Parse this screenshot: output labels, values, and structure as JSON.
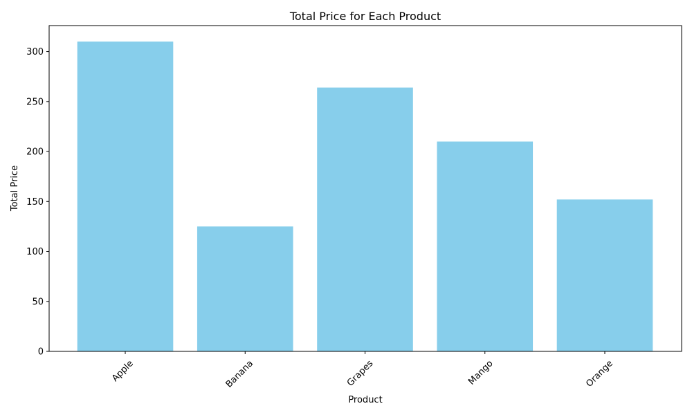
{
  "chart_data": {
    "type": "bar",
    "title": "Total Price for Each Product",
    "xlabel": "Product",
    "ylabel": "Total Price",
    "categories": [
      "Apple",
      "Banana",
      "Grapes",
      "Mango",
      "Orange"
    ],
    "values": [
      310,
      125,
      264,
      210,
      152
    ],
    "ylim": [
      0,
      326
    ],
    "yticks": [
      0,
      50,
      100,
      150,
      200,
      250,
      300
    ],
    "x_tick_rotation_deg": 45,
    "bar_color": "#87ceeb",
    "grid": false,
    "legend": "none"
  }
}
